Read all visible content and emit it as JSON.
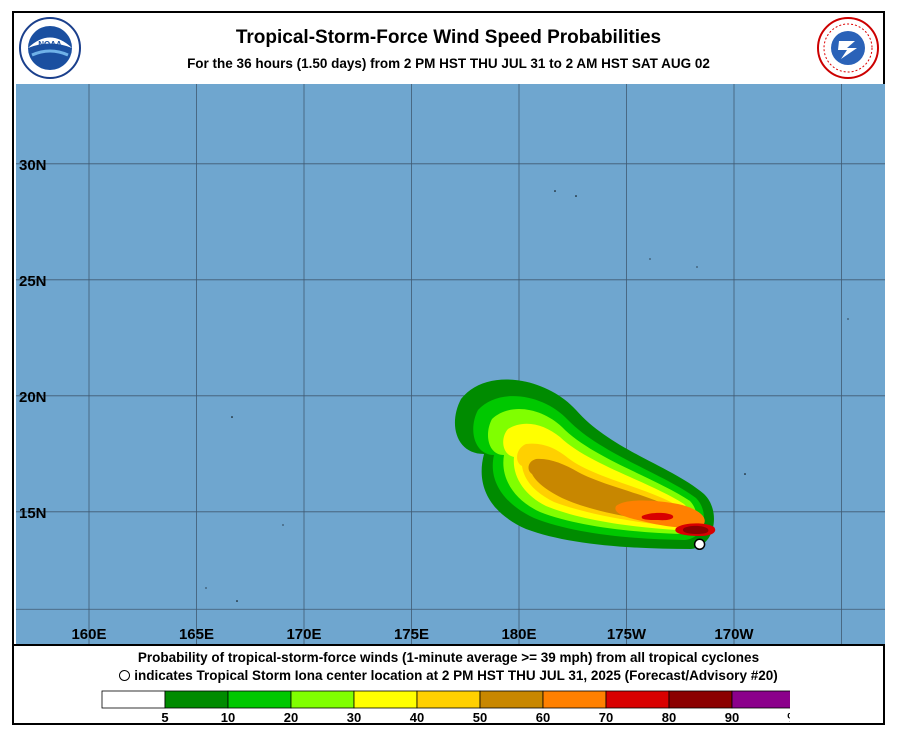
{
  "header": {
    "title": "Tropical-Storm-Force Wind Speed Probabilities",
    "subtitle": "For the  36 hours (1.50 days) from 2 PM HST THU JUL 31 to 2 AM HST SAT AUG 02",
    "noaa_logo_text": "NOAA",
    "nws_logo_text": "NATIONAL WEATHER SERVICE"
  },
  "map": {
    "ocean_color": "#6fa6cf",
    "grid_color": "#405a72",
    "lat_labels": [
      "30N",
      "25N",
      "20N",
      "15N"
    ],
    "lon_labels": [
      "160E",
      "165E",
      "170E",
      "175E",
      "180E",
      "175W",
      "170W"
    ],
    "storm_marker": {
      "name": "Iona",
      "lat": 13.6,
      "lon": -171.6
    }
  },
  "footer": {
    "caption_line1": "Probability of tropical-storm-force winds (1-minute average >= 39 mph) from all tropical cyclones",
    "caption_line2": "indicates Tropical Storm Iona center location at 2 PM HST THU JUL 31, 2025 (Forecast/Advisory #20)"
  },
  "legend": {
    "colors": [
      "#ffffff",
      "#008b00",
      "#00c800",
      "#80ff00",
      "#ffff00",
      "#ffd000",
      "#c88700",
      "#ff8000",
      "#d80000",
      "#8b0000",
      "#8b008b"
    ],
    "labels": [
      "5",
      "10",
      "20",
      "30",
      "40",
      "50",
      "60",
      "70",
      "80",
      "90",
      "%"
    ]
  }
}
